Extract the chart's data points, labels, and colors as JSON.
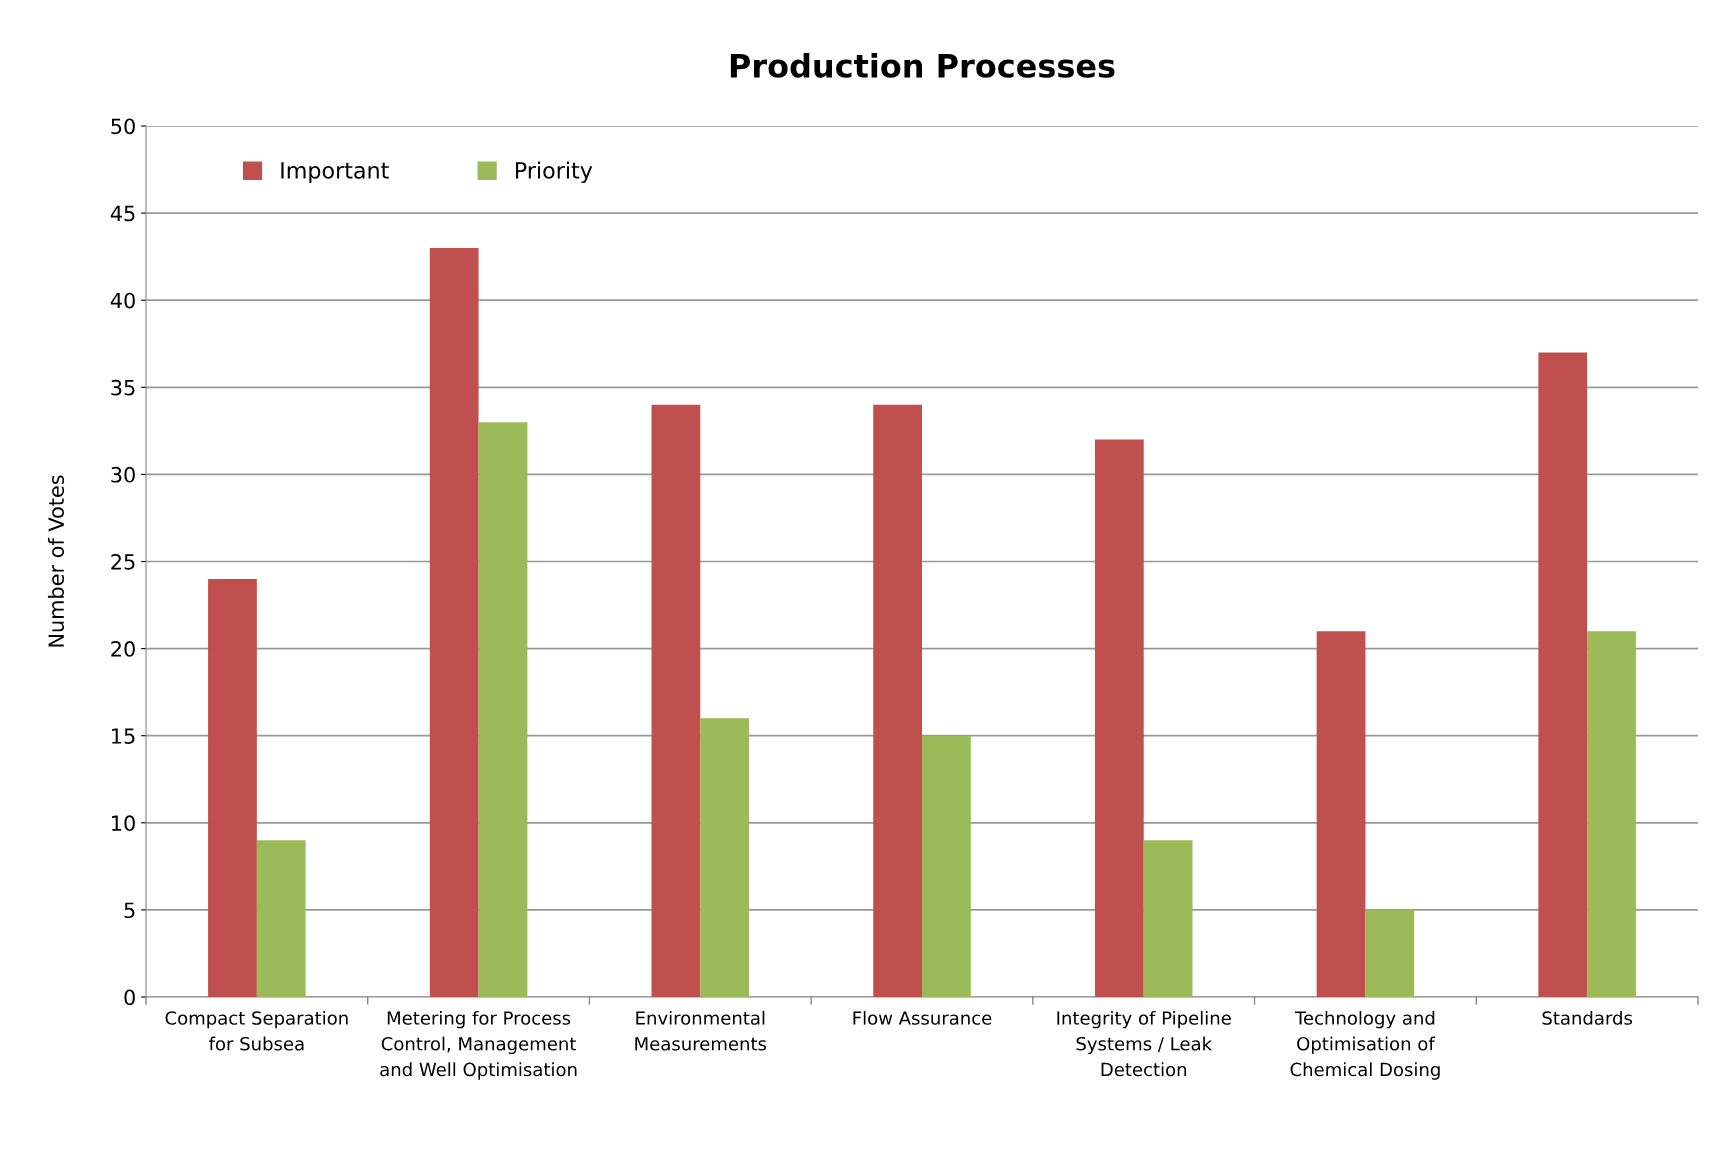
{
  "chart_data": {
    "type": "bar",
    "title": "Production Processes",
    "ylabel": "Number of Votes",
    "categories": [
      "Compact Separation\nfor Subsea",
      "Metering for Process\nControl, Management\nand Well Optimisation",
      "Environmental\nMeasurements",
      "Flow Assurance",
      "Integrity of Pipeline\nSystems / Leak\nDetection",
      "Technology and\nOptimisation of\nChemical Dosing",
      "Standards"
    ],
    "series": [
      {
        "name": "Important",
        "color": "#c0504d",
        "values": [
          24,
          43,
          34,
          34,
          32,
          21,
          37
        ]
      },
      {
        "name": "Priority",
        "color": "#9bbb59",
        "values": [
          9,
          33,
          16,
          15,
          9,
          5,
          21
        ]
      }
    ],
    "ylim": [
      0,
      50
    ],
    "yticks": [
      0,
      5,
      10,
      15,
      20,
      25,
      30,
      35,
      40,
      45,
      50
    ],
    "grid": "y",
    "legend": "top left"
  }
}
